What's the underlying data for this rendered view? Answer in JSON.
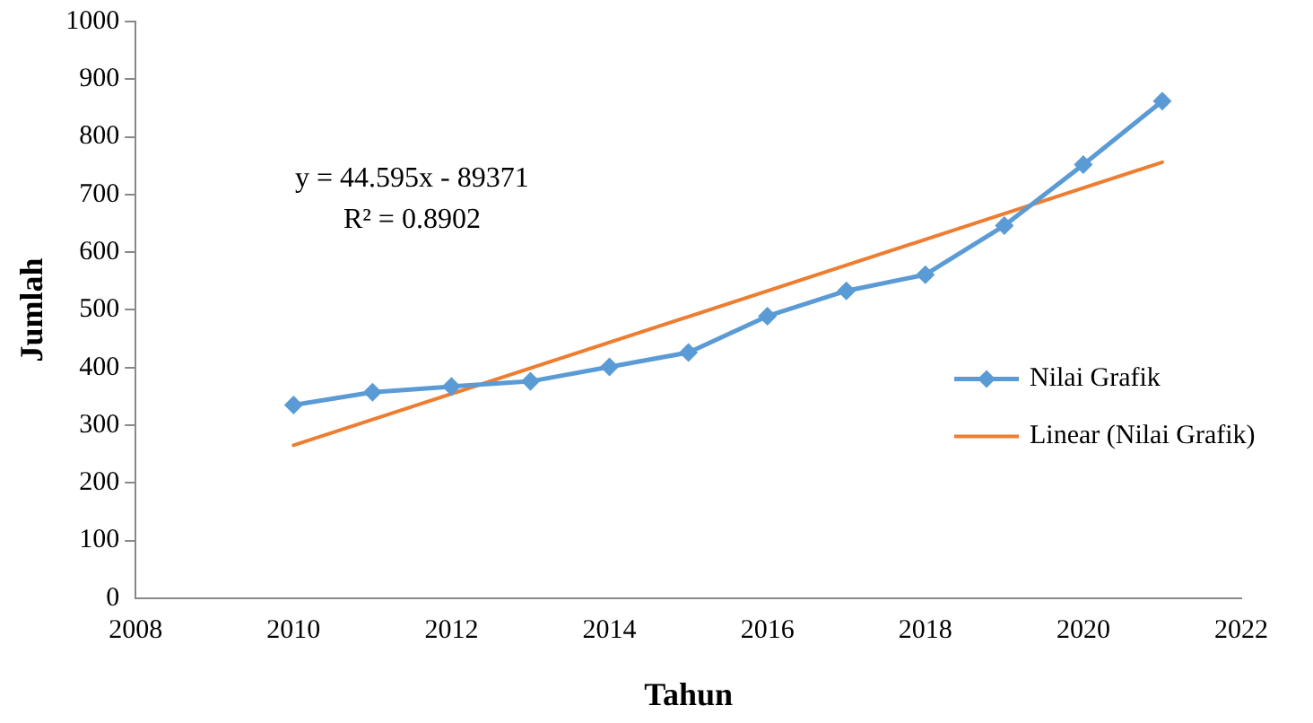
{
  "chart_data": {
    "type": "line",
    "xlabel": "Tahun",
    "ylabel": "Jumlah",
    "xlim": [
      2008,
      2022
    ],
    "xticks": [
      2008,
      2010,
      2012,
      2014,
      2016,
      2018,
      2020,
      2022
    ],
    "ylim": [
      0,
      1000
    ],
    "yticks": [
      0,
      100,
      200,
      300,
      400,
      500,
      600,
      700,
      800,
      900,
      1000
    ],
    "grid": false,
    "legend": "right",
    "line_style": "solid",
    "series": [
      {
        "name": "Nilai Grafik",
        "color": "#5b9bd5",
        "marker": "diamond",
        "x": [
          2010,
          2011,
          2012,
          2013,
          2014,
          2015,
          2016,
          2017,
          2018,
          2019,
          2020,
          2021
        ],
        "values": [
          335,
          357,
          367,
          376,
          401,
          426,
          489,
          533,
          561,
          646,
          752,
          862
        ]
      },
      {
        "name": "Linear (Nilai Grafik)",
        "type": "line",
        "color": "#ed7d31",
        "marker": "none",
        "x": [
          2010,
          2021
        ],
        "values": [
          265,
          756
        ]
      }
    ],
    "annotations": [
      "y = 44.595x - 89371",
      "R² = 0.8902"
    ]
  }
}
